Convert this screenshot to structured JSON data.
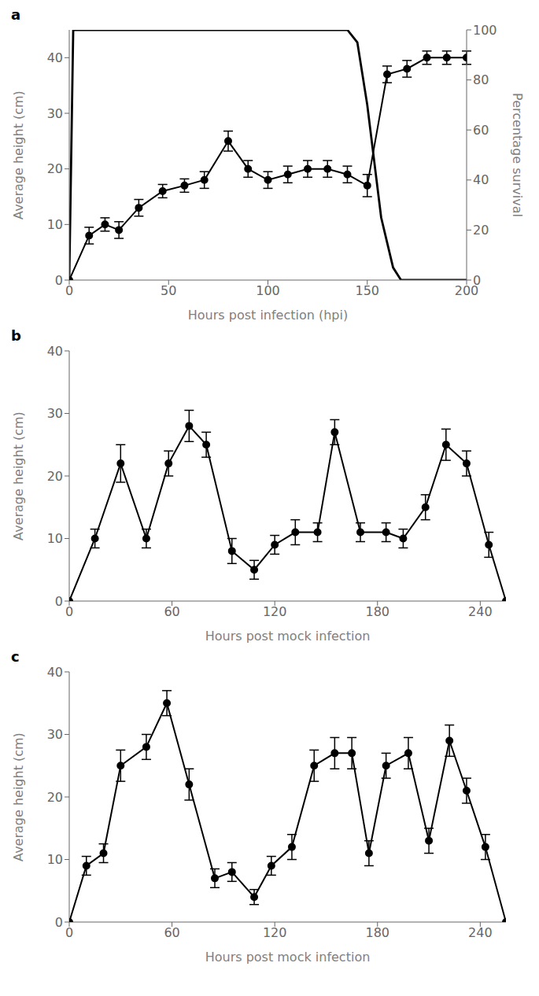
{
  "chart_data": [
    {
      "type": "line",
      "title": "a",
      "xlabel": "Hours post infection (hpi)",
      "ylabel": "Average height (cm)",
      "y2label": "Percentage survival",
      "xlim": [
        0,
        200
      ],
      "xticks": [
        0,
        50,
        100,
        150,
        200
      ],
      "ylim": [
        0,
        45
      ],
      "yticks": [
        0,
        10,
        20,
        30,
        40
      ],
      "y2lim": [
        0,
        100
      ],
      "y2ticks": [
        0,
        20,
        40,
        60,
        80,
        100
      ],
      "grid": false,
      "series": [
        {
          "x": [
            0,
            10,
            18,
            25,
            35,
            47,
            58,
            68,
            80,
            90,
            100,
            110,
            120,
            130,
            140,
            150,
            160,
            170,
            180,
            190,
            200
          ],
          "values": [
            0,
            8,
            10,
            9,
            13,
            16,
            17,
            18,
            25,
            20,
            18,
            19,
            20,
            20,
            19,
            17,
            37,
            38,
            40,
            40,
            40
          ],
          "error": [
            0,
            1.5,
            1.2,
            1.5,
            1.5,
            1.2,
            1.2,
            1.5,
            1.8,
            1.5,
            1.5,
            1.5,
            1.5,
            1.5,
            1.5,
            2.0,
            1.5,
            1.5,
            1.2,
            1.2,
            1.2
          ],
          "color": "#000000",
          "marker": "o"
        },
        {
          "x": [
            0,
            2,
            140,
            145,
            150,
            157,
            163,
            167,
            200
          ],
          "values": [
            0,
            100,
            100,
            95,
            70,
            25,
            5,
            0,
            0
          ],
          "color": "#000000",
          "axis": "y2"
        }
      ]
    },
    {
      "type": "line",
      "title": "b",
      "xlabel": "Hours post mock infection",
      "ylabel": "Average height (cm)",
      "xlim": [
        0,
        255
      ],
      "xticks": [
        0,
        60,
        120,
        180,
        240
      ],
      "ylim": [
        0,
        40
      ],
      "yticks": [
        0,
        10,
        20,
        30,
        40
      ],
      "grid": false,
      "series": [
        {
          "x": [
            0,
            15,
            30,
            45,
            58,
            70,
            80,
            95,
            108,
            120,
            132,
            145,
            155,
            170,
            185,
            195,
            208,
            220,
            232,
            245,
            255
          ],
          "values": [
            0,
            10,
            22,
            10,
            22,
            28,
            25,
            8,
            5,
            9,
            11,
            11,
            27,
            11,
            11,
            10,
            15,
            25,
            22,
            9,
            0
          ],
          "error": [
            0,
            1.5,
            3.0,
            1.5,
            2.0,
            2.5,
            2.0,
            2.0,
            1.5,
            1.5,
            2.0,
            1.5,
            2.0,
            1.5,
            1.5,
            1.5,
            2.0,
            2.5,
            2.0,
            2.0,
            0
          ],
          "color": "#000000",
          "marker": "o"
        }
      ]
    },
    {
      "type": "line",
      "title": "c",
      "xlabel": "Hours post mock infection",
      "ylabel": "Average height (cm)",
      "xlim": [
        0,
        255
      ],
      "xticks": [
        0,
        60,
        120,
        180,
        240
      ],
      "ylim": [
        0,
        40
      ],
      "yticks": [
        0,
        10,
        20,
        30,
        40
      ],
      "grid": false,
      "series": [
        {
          "x": [
            0,
            10,
            20,
            30,
            45,
            57,
            70,
            85,
            95,
            108,
            118,
            130,
            143,
            155,
            165,
            175,
            185,
            198,
            210,
            222,
            232,
            243,
            255
          ],
          "values": [
            0,
            9,
            11,
            25,
            28,
            35,
            22,
            7,
            8,
            4,
            9,
            12,
            25,
            27,
            27,
            11,
            25,
            27,
            13,
            29,
            21,
            12,
            0
          ],
          "error": [
            0,
            1.5,
            1.5,
            2.5,
            2.0,
            2.0,
            2.5,
            1.5,
            1.5,
            1.2,
            1.5,
            2.0,
            2.5,
            2.5,
            2.5,
            2.0,
            2.0,
            2.5,
            2.0,
            2.5,
            2.0,
            2.0,
            0
          ],
          "color": "#000000",
          "marker": "o"
        }
      ]
    }
  ]
}
